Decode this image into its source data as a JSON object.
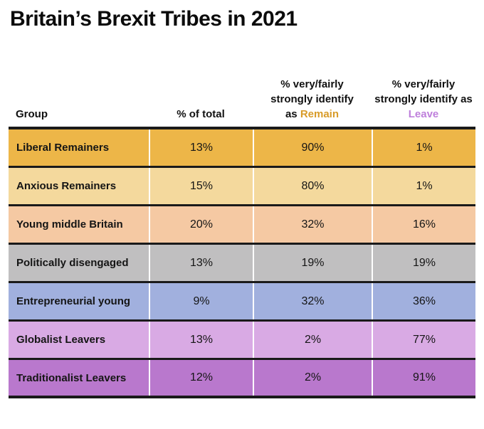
{
  "title": "Britain’s Brexit Tribes in 2021",
  "colors": {
    "remain_accent": "#D89B28",
    "leave_accent": "#BE7FDB",
    "rule_line": "#1A1A1A",
    "background": "#FFFFFF"
  },
  "table": {
    "header": {
      "group": "Group",
      "total": "% of total",
      "remain": {
        "line1": "% very/fairly",
        "line2": "strongly identify",
        "line3_prefix": "as",
        "label": "Remain"
      },
      "leave": {
        "line1": "% very/fairly",
        "line2": "strongly identify as",
        "label": "Leave"
      }
    },
    "rows": [
      {
        "group": "Liberal Remainers",
        "total": "13%",
        "remain": "90%",
        "leave": "1%",
        "color": "#EDB648"
      },
      {
        "group": "Anxious Remainers",
        "total": "15%",
        "remain": "80%",
        "leave": "1%",
        "color": "#F4D99D"
      },
      {
        "group": "Young middle Britain",
        "total": "20%",
        "remain": "32%",
        "leave": "16%",
        "color": "#F5C9A3"
      },
      {
        "group": "Politically disengaged",
        "total": "13%",
        "remain": "19%",
        "leave": "19%",
        "color": "#C0BFC0"
      },
      {
        "group": "Entrepreneurial young",
        "total": "9%",
        "remain": "32%",
        "leave": "36%",
        "color": "#A1B0DE"
      },
      {
        "group": "Globalist Leavers",
        "total": "13%",
        "remain": "2%",
        "leave": "77%",
        "color": "#D9AAE4"
      },
      {
        "group": "Traditionalist Leavers",
        "total": "12%",
        "remain": "2%",
        "leave": "91%",
        "color": "#B978CD"
      }
    ]
  },
  "chart_data": {
    "type": "table",
    "title": "Britain’s Brexit Tribes in 2021",
    "columns": [
      "Group",
      "% of total",
      "% very/fairly strongly identify as Remain",
      "% very/fairly strongly identify as Leave"
    ],
    "rows": [
      [
        "Liberal Remainers",
        13,
        90,
        1
      ],
      [
        "Anxious Remainers",
        15,
        80,
        1
      ],
      [
        "Young middle Britain",
        20,
        32,
        16
      ],
      [
        "Politically disengaged",
        13,
        19,
        19
      ],
      [
        "Entrepreneurial young",
        9,
        32,
        36
      ],
      [
        "Globalist Leavers",
        13,
        2,
        77
      ],
      [
        "Traditionalist Leavers",
        12,
        2,
        91
      ]
    ],
    "row_colors": [
      "#EDB648",
      "#F4D99D",
      "#F5C9A3",
      "#C0BFC0",
      "#A1B0DE",
      "#D9AAE4",
      "#B978CD"
    ],
    "units": "percent",
    "notes": "Remain column header accent color #D89B28; Leave column header accent color #BE7FDB"
  }
}
